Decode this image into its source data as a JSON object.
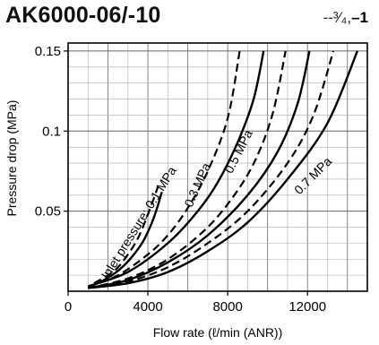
{
  "title": "AK6000-06/-10",
  "legend": {
    "dashed_label": "--³⁄₄,",
    "solid_label": "–1"
  },
  "chart_data": {
    "type": "line",
    "title": "AK6000-06/-10",
    "xlabel": "Flow rate (ℓ/min (ANR))",
    "ylabel": "Pressure drop (MPa)",
    "xlim": [
      0,
      15000
    ],
    "ylim": [
      0,
      0.155
    ],
    "x_ticks": [
      0,
      4000,
      8000,
      12000
    ],
    "x_tick_labels": [
      "0",
      "4000",
      "8000",
      "12000"
    ],
    "y_ticks": [
      0.05,
      0.1,
      0.15
    ],
    "y_tick_labels": [
      "0.05",
      "0.1",
      "0.15"
    ],
    "grid": true,
    "curve_labels": [
      {
        "text": "Inlet pressure: 0.1 MPa"
      },
      {
        "text": "0.3 MPa"
      },
      {
        "text": "0.5 MPa"
      },
      {
        "text": "0.7 MPa"
      }
    ],
    "series": [
      {
        "pressure": "0.1 MPa",
        "style": "dashed",
        "x": [
          1300,
          2000,
          2500,
          3000,
          3500,
          4000,
          4500
        ],
        "y": [
          0.005,
          0.01,
          0.015,
          0.023,
          0.033,
          0.048,
          0.065
        ]
      },
      {
        "pressure": "0.1 MPa",
        "style": "solid",
        "x": [
          1500,
          2200,
          2800,
          3300,
          3800,
          4300,
          4700
        ],
        "y": [
          0.005,
          0.01,
          0.016,
          0.023,
          0.032,
          0.046,
          0.062
        ]
      },
      {
        "pressure": "0.3 MPa",
        "style": "dashed",
        "x": [
          1000,
          2500,
          4000,
          5000,
          6000,
          7000,
          8000,
          8600
        ],
        "y": [
          0.003,
          0.01,
          0.023,
          0.035,
          0.052,
          0.075,
          0.108,
          0.15
        ]
      },
      {
        "pressure": "0.3 MPa",
        "style": "solid",
        "x": [
          1000,
          3000,
          5000,
          6500,
          7500,
          8500,
          9300,
          9800
        ],
        "y": [
          0.003,
          0.012,
          0.03,
          0.05,
          0.068,
          0.093,
          0.12,
          0.15
        ]
      },
      {
        "pressure": "0.5 MPa",
        "style": "dashed",
        "x": [
          1000,
          3000,
          5000,
          7000,
          8500,
          9500,
          10300,
          10900
        ],
        "y": [
          0.002,
          0.008,
          0.02,
          0.04,
          0.063,
          0.085,
          0.113,
          0.15
        ]
      },
      {
        "pressure": "0.5 MPa",
        "style": "solid",
        "x": [
          1000,
          3000,
          5000,
          7000,
          9000,
          10500,
          11500,
          12100
        ],
        "y": [
          0.002,
          0.007,
          0.018,
          0.035,
          0.06,
          0.087,
          0.117,
          0.15
        ]
      },
      {
        "pressure": "0.7 MPa",
        "style": "dashed",
        "x": [
          1000,
          3000,
          5000,
          7000,
          9000,
          11000,
          12300,
          13300
        ],
        "y": [
          0.002,
          0.006,
          0.015,
          0.03,
          0.05,
          0.08,
          0.11,
          0.15
        ]
      },
      {
        "pressure": "0.7 MPa",
        "style": "solid",
        "x": [
          1000,
          3000,
          5000,
          7000,
          9000,
          11000,
          13000,
          14500
        ],
        "y": [
          0.002,
          0.005,
          0.012,
          0.025,
          0.043,
          0.07,
          0.105,
          0.15
        ]
      }
    ]
  }
}
